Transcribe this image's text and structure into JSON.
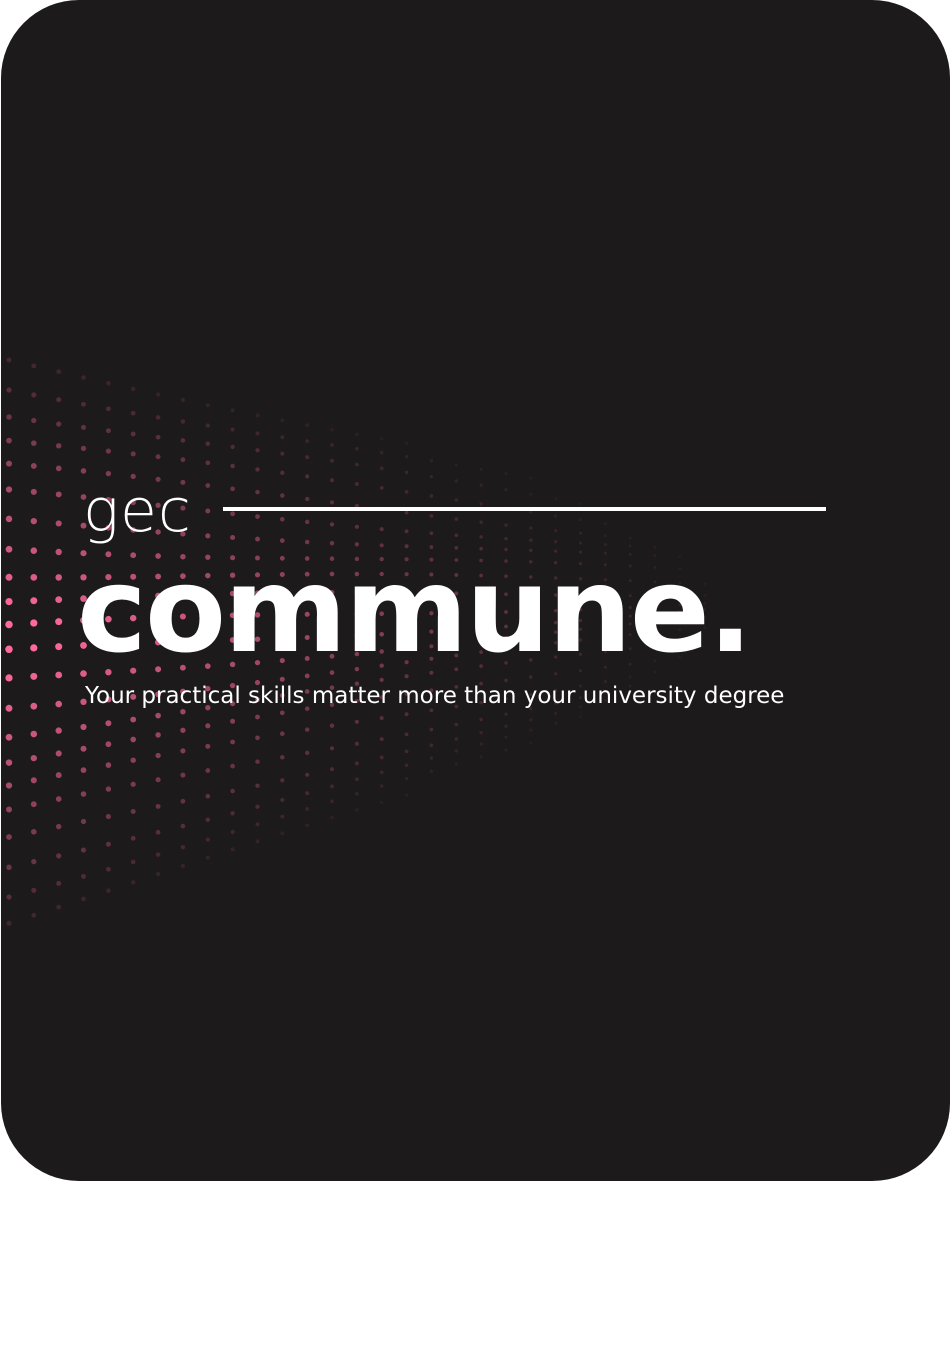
{
  "card": {
    "background": "#1c1a1b",
    "accent": "#ff6a9a"
  },
  "logo": {
    "prefix": "gec",
    "name": "commune."
  },
  "tagline": "Your practical skills matter more than your university degree"
}
